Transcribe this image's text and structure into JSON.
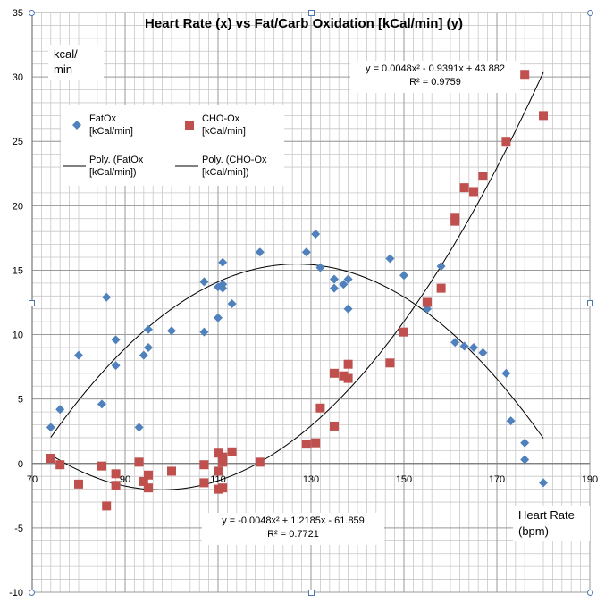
{
  "chart_data": {
    "type": "scatter",
    "title": "Heart Rate (x) vs Fat/Carb Oxidation [kCal/min] (y)",
    "ylabel": "kcal/\nmin",
    "ylabel_lines": [
      "kcal/",
      "min"
    ],
    "xlabel": "Heart Rate\n(bpm)",
    "xlabel_lines": [
      "Heart Rate",
      "(bpm)"
    ],
    "xlim": [
      70,
      190
    ],
    "ylim": [
      -10,
      35
    ],
    "x_ticks": [
      70,
      90,
      110,
      130,
      150,
      170,
      190
    ],
    "x_tick_labels": [
      "70",
      "90",
      "110",
      "130",
      "150",
      "170",
      "190"
    ],
    "y_ticks": [
      -10,
      -5,
      0,
      5,
      10,
      15,
      20,
      25,
      30,
      35
    ],
    "y_tick_labels": [
      "-10",
      "-5",
      "0",
      "5",
      "10",
      "15",
      "20",
      "25",
      "30",
      "35"
    ],
    "grid": true,
    "minor_x_step": 2,
    "minor_y_step": 1,
    "legend_position": "top-left",
    "series": [
      {
        "name": "FatOx [kCal/min]",
        "legend_lines": [
          "FatOx",
          "[kCal/min]"
        ],
        "marker": "diamond",
        "color": "#4f81bd",
        "points": [
          [
            74,
            2.8
          ],
          [
            76,
            4.2
          ],
          [
            80,
            8.4
          ],
          [
            85,
            4.6
          ],
          [
            86,
            12.9
          ],
          [
            88,
            7.6
          ],
          [
            88,
            9.6
          ],
          [
            93,
            2.8
          ],
          [
            94,
            8.4
          ],
          [
            95,
            9.0
          ],
          [
            95,
            10.4
          ],
          [
            100,
            10.3
          ],
          [
            107,
            10.2
          ],
          [
            107,
            14.1
          ],
          [
            110,
            11.3
          ],
          [
            110,
            13.7
          ],
          [
            111,
            13.6
          ],
          [
            111,
            13.9
          ],
          [
            111,
            15.6
          ],
          [
            113,
            12.4
          ],
          [
            119,
            16.4
          ],
          [
            129,
            16.4
          ],
          [
            131,
            17.8
          ],
          [
            132,
            15.2
          ],
          [
            135,
            13.6
          ],
          [
            135,
            14.3
          ],
          [
            137,
            13.9
          ],
          [
            138,
            14.3
          ],
          [
            138,
            12.0
          ],
          [
            147,
            15.9
          ],
          [
            150,
            14.6
          ],
          [
            155,
            12.0
          ],
          [
            158,
            15.3
          ],
          [
            161,
            9.4
          ],
          [
            163,
            9.1
          ],
          [
            165,
            9.0
          ],
          [
            167,
            8.6
          ],
          [
            172,
            7.0
          ],
          [
            173,
            3.3
          ],
          [
            176,
            1.6
          ],
          [
            176,
            0.3
          ],
          [
            180,
            -1.5
          ]
        ]
      },
      {
        "name": "CHO-Ox [kCal/min]",
        "legend_lines": [
          "CHO-Ox",
          "[kCal/min]"
        ],
        "marker": "square",
        "color": "#c0504d",
        "points": [
          [
            74,
            0.4
          ],
          [
            76,
            -0.1
          ],
          [
            80,
            -1.6
          ],
          [
            85,
            -0.2
          ],
          [
            86,
            -3.3
          ],
          [
            88,
            -0.8
          ],
          [
            88,
            -1.7
          ],
          [
            93,
            0.1
          ],
          [
            94,
            -1.4
          ],
          [
            95,
            -0.9
          ],
          [
            95,
            -1.9
          ],
          [
            100,
            -0.6
          ],
          [
            107,
            -0.1
          ],
          [
            107,
            -1.5
          ],
          [
            110,
            0.8
          ],
          [
            110,
            -0.6
          ],
          [
            110,
            -2.0
          ],
          [
            111,
            0.5
          ],
          [
            111,
            0.1
          ],
          [
            111,
            -1.9
          ],
          [
            113,
            0.9
          ],
          [
            119,
            0.1
          ],
          [
            129,
            1.5
          ],
          [
            131,
            1.6
          ],
          [
            132,
            4.3
          ],
          [
            135,
            2.9
          ],
          [
            135,
            7.0
          ],
          [
            137,
            6.8
          ],
          [
            138,
            7.7
          ],
          [
            138,
            6.6
          ],
          [
            147,
            7.8
          ],
          [
            150,
            10.2
          ],
          [
            155,
            12.5
          ],
          [
            158,
            13.6
          ],
          [
            161,
            19.1
          ],
          [
            161,
            18.8
          ],
          [
            163,
            21.4
          ],
          [
            165,
            21.1
          ],
          [
            167,
            22.3
          ],
          [
            172,
            25.0
          ],
          [
            176,
            30.2
          ],
          [
            180,
            27.0
          ]
        ]
      },
      {
        "name": "Poly. (FatOx [kCal/min])",
        "legend_lines": [
          "Poly. (FatOx",
          "[kCal/min])"
        ],
        "type": "trendline",
        "color": "#000000",
        "coefficients": [
          -0.0048,
          1.2185,
          -61.859
        ],
        "x_range": [
          74,
          180
        ]
      },
      {
        "name": "Poly. (CHO-Ox [kCal/min])",
        "legend_lines": [
          "Poly. (CHO-Ox",
          "[kCal/min])"
        ],
        "type": "trendline",
        "color": "#000000",
        "coefficients": [
          0.0048,
          -0.9391,
          43.882
        ],
        "x_range": [
          74,
          180
        ]
      }
    ],
    "annotations": {
      "carb_equation": "y = 0.0048x² - 0.9391x + 43.882",
      "carb_r2": "R² = 0.9759",
      "fat_equation": "y = -0.0048x² + 1.2185x - 61.859",
      "fat_r2": "R² = 0.7721"
    }
  }
}
